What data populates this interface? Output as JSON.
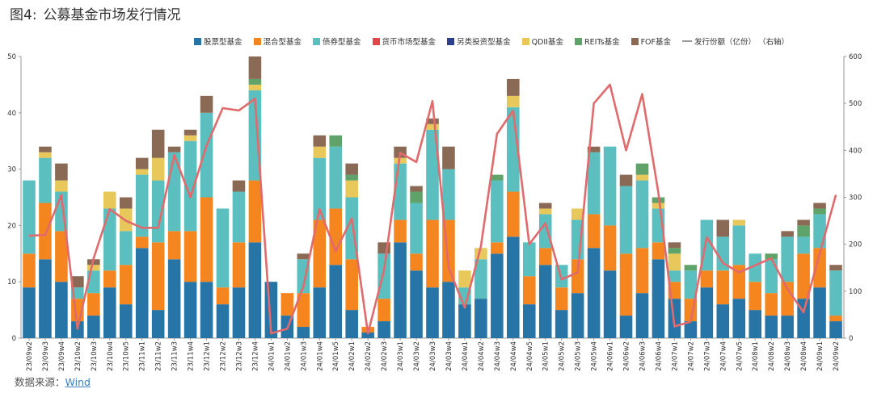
{
  "figure": {
    "label": "图4:",
    "title": "公募基金市场发行情况"
  },
  "legend_extra": "（右轴）",
  "source": {
    "prefix": "数据来源：",
    "name": "Wind"
  },
  "chart_data": {
    "type": "bar",
    "stacked": true,
    "y_left": {
      "min": 0,
      "max": 50,
      "ticks": [
        0,
        10,
        20,
        30,
        40,
        50
      ]
    },
    "y_right": {
      "min": 0,
      "max": 600,
      "ticks": [
        0,
        100,
        200,
        300,
        400,
        500,
        600
      ]
    },
    "grid": false,
    "legend_position": "top",
    "categories": [
      "23/09w2",
      "23/09w3",
      "23/09w4",
      "23/10w2",
      "23/10w3",
      "23/10w4",
      "23/10w5",
      "23/11w1",
      "23/11w2",
      "23/11w3",
      "23/11w4",
      "23/12w1",
      "23/12w2",
      "23/12w3",
      "23/12w4",
      "24/01w1",
      "24/01w2",
      "24/01w3",
      "24/01w4",
      "24/01w5",
      "24/02w1",
      "24/02w2",
      "24/02w3",
      "24/03w1",
      "24/03w2",
      "24/03w3",
      "24/03w4",
      "24/04w1",
      "24/04w2",
      "24/04w3",
      "24/04w4",
      "24/04w5",
      "24/05w1",
      "24/05w2",
      "24/05w3",
      "24/05w4",
      "24/06w1",
      "24/06w2",
      "24/06w3",
      "24/06w4",
      "24/07w1",
      "24/07w2",
      "24/07w3",
      "24/07w4",
      "24/07w5",
      "24/08w1",
      "24/08w2",
      "24/08w3",
      "24/08w4",
      "24/09w1",
      "24/09w2"
    ],
    "series": [
      {
        "name": "股票型基金",
        "color": "#2774a6",
        "values": [
          9,
          14,
          10,
          3,
          4,
          9,
          6,
          16,
          5,
          14,
          10,
          10,
          6,
          9,
          17,
          10,
          4,
          2,
          9,
          13,
          5,
          1,
          3,
          17,
          12,
          9,
          10,
          6,
          7,
          15,
          18,
          6,
          13,
          5,
          8,
          16,
          12,
          4,
          8,
          14,
          7,
          3,
          9,
          6,
          7,
          5,
          4,
          4,
          7,
          9,
          3
        ]
      },
      {
        "name": "混合型基金",
        "color": "#f5861f",
        "values": [
          6,
          10,
          9,
          4,
          4,
          3,
          7,
          2,
          12,
          5,
          9,
          15,
          3,
          8,
          11,
          0,
          4,
          6,
          12,
          10,
          9,
          1,
          4,
          4,
          3,
          12,
          11,
          0,
          0,
          2,
          8,
          5,
          3,
          4,
          6,
          6,
          8,
          11,
          8,
          3,
          3,
          4,
          3,
          6,
          6,
          5,
          4,
          6,
          8,
          7,
          1
        ]
      },
      {
        "name": "债券型基金",
        "color": "#5bbfbf",
        "values": [
          13,
          8,
          7,
          2,
          4,
          11,
          6,
          11,
          11,
          14,
          16,
          15,
          14,
          9,
          16,
          0,
          0,
          6,
          11,
          11,
          11,
          0,
          8,
          10,
          9,
          16,
          9,
          3,
          7,
          11,
          15,
          6,
          6,
          4,
          7,
          11,
          14,
          12,
          12,
          6,
          2,
          5,
          9,
          6,
          7,
          5,
          6,
          8,
          3,
          6,
          8
        ]
      },
      {
        "name": "货币市场型基金",
        "color": "#e0464a",
        "values": [
          0,
          0,
          0,
          0,
          0,
          0,
          0,
          0,
          0,
          0,
          0,
          0,
          0,
          0,
          0,
          0,
          0,
          0,
          0,
          0,
          0,
          0,
          0,
          0,
          0,
          0,
          0,
          0,
          0,
          0,
          0,
          0,
          0,
          0,
          0,
          0,
          0,
          0,
          0,
          0,
          0,
          0,
          0,
          0,
          0,
          0,
          0,
          0,
          0,
          0,
          0
        ]
      },
      {
        "name": "另类投资型基金",
        "color": "#2b3f8c",
        "values": [
          0,
          0,
          0,
          0,
          0,
          0,
          0,
          0,
          0,
          0,
          0,
          0,
          0,
          0,
          0,
          0,
          0,
          0,
          0,
          0,
          0,
          0,
          0,
          0,
          0,
          0,
          0,
          0,
          0,
          0,
          0,
          0,
          0,
          0,
          0,
          0,
          0,
          0,
          0,
          0,
          0,
          0,
          0,
          0,
          0,
          0,
          0,
          0,
          0,
          0,
          0
        ]
      },
      {
        "name": "QDII基金",
        "color": "#e8c85a",
        "values": [
          0,
          1,
          2,
          0,
          1,
          3,
          4,
          1,
          4,
          0,
          1,
          0,
          0,
          0,
          1,
          0,
          0,
          0,
          2,
          0,
          3,
          0,
          0,
          1,
          0,
          1,
          0,
          3,
          2,
          0,
          2,
          0,
          1,
          0,
          2,
          0,
          0,
          0,
          1,
          1,
          3,
          0,
          0,
          0,
          1,
          0,
          0,
          0,
          0,
          0,
          0
        ]
      },
      {
        "name": "REITs基金",
        "color": "#5fa36a",
        "values": [
          0,
          0,
          0,
          0,
          0,
          0,
          0,
          0,
          0,
          0,
          0,
          0,
          0,
          0,
          1,
          0,
          0,
          0,
          0,
          2,
          1,
          0,
          0,
          0,
          2,
          0,
          0,
          0,
          0,
          1,
          0,
          0,
          0,
          0,
          0,
          0,
          0,
          0,
          2,
          1,
          1,
          1,
          0,
          0,
          0,
          0,
          1,
          0,
          2,
          1,
          0
        ]
      },
      {
        "name": "FOF基金",
        "color": "#8b6a55",
        "values": [
          0,
          1,
          3,
          2,
          1,
          0,
          2,
          2,
          5,
          1,
          1,
          3,
          0,
          2,
          4,
          0,
          0,
          1,
          2,
          0,
          2,
          0,
          2,
          2,
          1,
          1,
          4,
          0,
          0,
          0,
          3,
          0,
          1,
          0,
          0,
          1,
          0,
          2,
          0,
          0,
          1,
          0,
          0,
          3,
          0,
          0,
          0,
          1,
          1,
          1,
          1
        ]
      }
    ],
    "line": {
      "name": "发行份额（亿份）",
      "color": "#e06a6c",
      "axis": "right",
      "values": [
        218,
        220,
        305,
        20,
        170,
        275,
        250,
        235,
        235,
        390,
        300,
        410,
        490,
        485,
        510,
        10,
        20,
        110,
        275,
        185,
        255,
        10,
        145,
        395,
        375,
        505,
        150,
        65,
        195,
        435,
        485,
        200,
        245,
        125,
        140,
        500,
        540,
        400,
        520,
        310,
        25,
        35,
        215,
        160,
        140,
        155,
        170,
        105,
        55,
        180,
        305
      ]
    }
  }
}
